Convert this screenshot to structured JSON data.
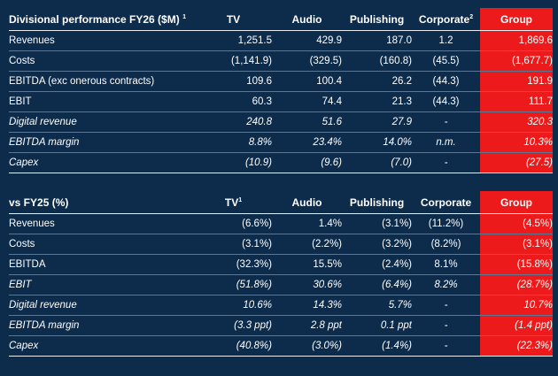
{
  "colors": {
    "background": "#0d2b4a",
    "group_highlight": "#ec1a1a",
    "rule": "#5a7896"
  },
  "tables": [
    {
      "title": "Divisional performance FY26 ($M)",
      "title_sup": "1",
      "columns": [
        {
          "label": "TV",
          "sup": ""
        },
        {
          "label": "Audio",
          "sup": ""
        },
        {
          "label": "Publishing",
          "sup": ""
        },
        {
          "label": "Corporate",
          "sup": "2"
        },
        {
          "label": "Group",
          "sup": ""
        }
      ],
      "rows": [
        {
          "label": "Revenues",
          "italic": false,
          "values": [
            "1,251.5",
            "429.9",
            "187.0",
            "1.2",
            "1,869.6"
          ]
        },
        {
          "label": "Costs",
          "italic": false,
          "values": [
            "(1,141.9)",
            "(329.5)",
            "(160.8)",
            "(45.5)",
            "(1,677.7)"
          ]
        },
        {
          "label": "EBITDA (exc onerous contracts)",
          "italic": false,
          "values": [
            "109.6",
            "100.4",
            "26.2",
            "(44.3)",
            "191.9"
          ]
        },
        {
          "label": "EBIT",
          "italic": false,
          "values": [
            "60.3",
            "74.4",
            "21.3",
            "(44.3)",
            "111.7"
          ]
        },
        {
          "label": "Digital revenue",
          "italic": true,
          "values": [
            "240.8",
            "51.6",
            "27.9",
            "-",
            "320.3"
          ]
        },
        {
          "label": "EBITDA margin",
          "italic": true,
          "values": [
            "8.8%",
            "23.4%",
            "14.0%",
            "n.m.",
            "10.3%"
          ]
        },
        {
          "label": "Capex",
          "italic": true,
          "values": [
            "(10.9)",
            "(9.6)",
            "(7.0)",
            "-",
            "(27.5)"
          ]
        }
      ]
    },
    {
      "title": "vs FY25 (%)",
      "title_sup": "",
      "columns": [
        {
          "label": "TV",
          "sup": "1"
        },
        {
          "label": "Audio",
          "sup": ""
        },
        {
          "label": "Publishing",
          "sup": ""
        },
        {
          "label": "Corporate",
          "sup": ""
        },
        {
          "label": "Group",
          "sup": ""
        }
      ],
      "rows": [
        {
          "label": "Revenues",
          "italic": false,
          "values": [
            "(6.6%)",
            "1.4%",
            "(3.1%)",
            "(11.2%)",
            "(4.5%)"
          ]
        },
        {
          "label": "Costs",
          "italic": false,
          "values": [
            "(3.1%)",
            "(2.2%)",
            "(3.2%)",
            "(8.2%)",
            "(3.1%)"
          ]
        },
        {
          "label": "EBITDA",
          "italic": false,
          "values": [
            "(32.3%)",
            "15.5%",
            "(2.4%)",
            "8.1%",
            "(15.8%)"
          ]
        },
        {
          "label": "EBIT",
          "italic": true,
          "values": [
            "(51.8%)",
            "30.6%",
            "(6.4%)",
            "8.2%",
            "(28.7%)"
          ]
        },
        {
          "label": "Digital revenue",
          "italic": true,
          "values": [
            "10.6%",
            "14.3%",
            "5.7%",
            "-",
            "10.7%"
          ]
        },
        {
          "label": "EBITDA margin",
          "italic": true,
          "values": [
            "(3.3 ppt)",
            "2.8 ppt",
            "0.1 ppt",
            "-",
            "(1.4 ppt)"
          ]
        },
        {
          "label": "Capex",
          "italic": true,
          "values": [
            "(40.8%)",
            "(3.0%)",
            "(1.4%)",
            "-",
            "(22.3%)"
          ]
        }
      ]
    }
  ]
}
